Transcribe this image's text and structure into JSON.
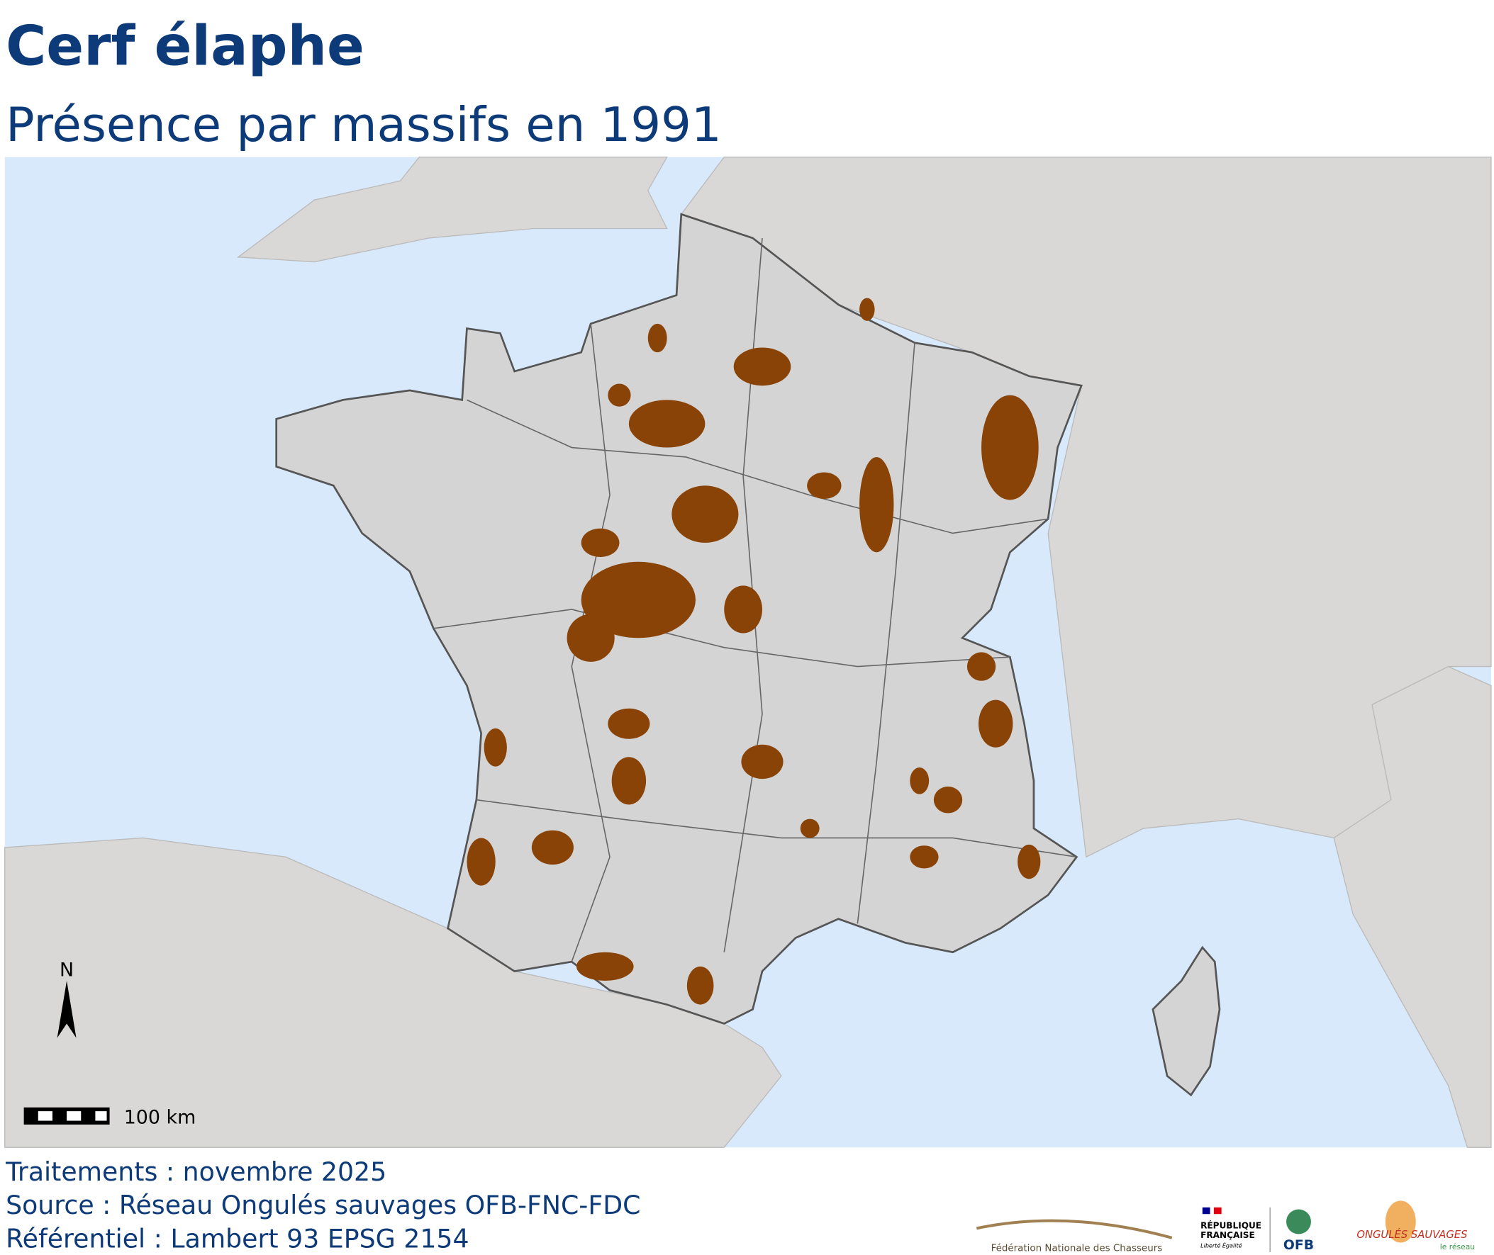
{
  "header": {
    "title": "Cerf élaphe",
    "subtitle": "Présence par massifs en 1991"
  },
  "map": {
    "north_label": "N",
    "scale_label": "100 km"
  },
  "footer": {
    "lines": [
      "Traitements : novembre 2025",
      "Source : Réseau Ongulés sauvages OFB-FNC-FDC",
      "Référentiel : Lambert 93 EPSG 2154"
    ]
  },
  "logos": {
    "fnc": "Fédération Nationale des Chasseurs",
    "rf_line1": "RÉPUBLIQUE",
    "rf_line2": "FRANÇAISE",
    "rf_motto": "Liberté Égalité",
    "ofb": "OFB",
    "ongules": "ONGULÉS SAUVAGES",
    "ongules_sub": "le réseau"
  }
}
